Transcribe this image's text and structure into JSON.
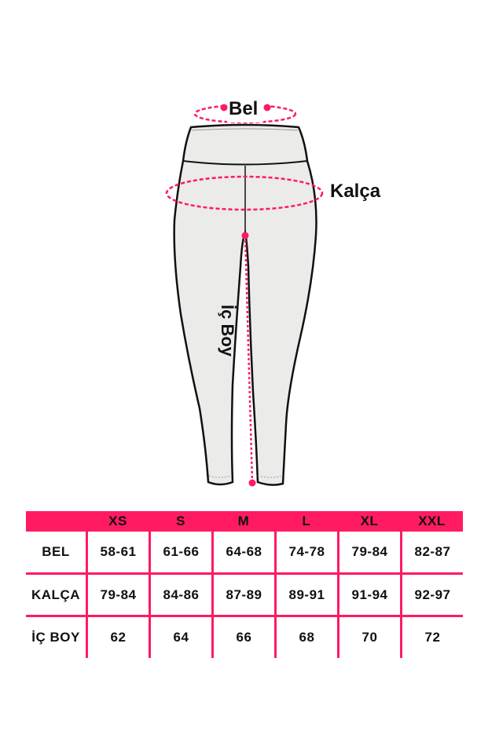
{
  "figure": {
    "labels": {
      "waist": "Bel",
      "hip": "Kalça",
      "inseam": "İç Boy"
    },
    "accent_color": "#ff1a62"
  },
  "size_table": {
    "columns": [
      "XS",
      "S",
      "M",
      "L",
      "XL",
      "XXL"
    ],
    "rows": [
      {
        "label": "BEL",
        "values": [
          "58-61",
          "61-66",
          "64-68",
          "74-78",
          "79-84",
          "82-87"
        ]
      },
      {
        "label": "KALÇA",
        "values": [
          "79-84",
          "84-86",
          "87-89",
          "89-91",
          "91-94",
          "92-97"
        ]
      },
      {
        "label": "İÇ BOY",
        "values": [
          "62",
          "64",
          "66",
          "68",
          "70",
          "72"
        ]
      }
    ]
  }
}
